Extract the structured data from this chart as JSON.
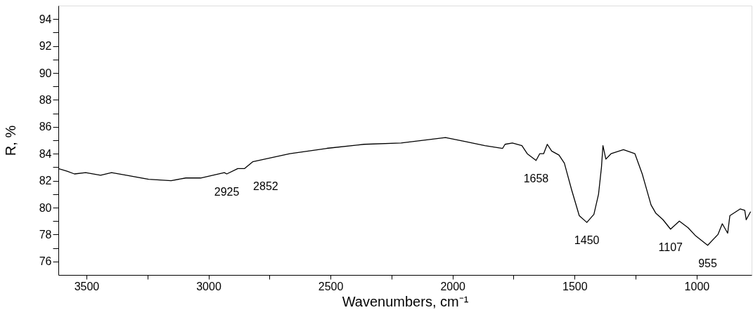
{
  "chart_data": {
    "type": "line",
    "xlabel": "Wavenumbers, cm⁻¹",
    "ylabel": "R, %",
    "xlim": [
      3615,
      775
    ],
    "ylim": [
      75,
      95
    ],
    "xticks": [
      3500,
      {
        "value": 3250,
        "label": null
      },
      3000,
      {
        "value": 2750,
        "label": null
      },
      2500,
      {
        "value": 2250,
        "label": null
      },
      2000,
      {
        "value": 1750,
        "label": null
      },
      1500,
      {
        "value": 1250,
        "label": null
      },
      1000
    ],
    "yticks": [
      76,
      {
        "value": 77,
        "label": null
      },
      78,
      {
        "value": 79,
        "label": null
      },
      80,
      {
        "value": 81,
        "label": null
      },
      82,
      {
        "value": 83,
        "label": null
      },
      84,
      {
        "value": 85,
        "label": null
      },
      86,
      {
        "value": 87,
        "label": null
      },
      88,
      {
        "value": 89,
        "label": null
      },
      90,
      {
        "value": 91,
        "label": null
      },
      92,
      {
        "value": 93,
        "label": null
      },
      94
    ],
    "grid": false,
    "marker": "none",
    "line_style": "solid",
    "series": [
      {
        "color": "#000000",
        "x": [
          3615,
          3579,
          3549,
          3503,
          3442,
          3397,
          3336,
          3245,
          3153,
          3093,
          3032,
          2935,
          2925,
          2880,
          2852,
          2819,
          2667,
          2515,
          2363,
          2211,
          2029,
          1947,
          1868,
          1795,
          1785,
          1755,
          1716,
          1694,
          1658,
          1643,
          1627,
          1612,
          1594,
          1564,
          1542,
          1512,
          1481,
          1450,
          1421,
          1402,
          1390,
          1384,
          1372,
          1351,
          1300,
          1253,
          1223,
          1187,
          1168,
          1138,
          1107,
          1071,
          1035,
          1004,
          955,
          913,
          895,
          873,
          864,
          822,
          803,
          797,
          779
        ],
        "values": [
          82.9,
          82.7,
          82.5,
          82.6,
          82.4,
          82.6,
          82.4,
          82.1,
          82.0,
          82.2,
          82.2,
          82.6,
          82.5,
          82.9,
          82.9,
          83.4,
          84.0,
          84.4,
          84.7,
          84.8,
          85.2,
          84.9,
          84.6,
          84.4,
          84.7,
          84.8,
          84.6,
          84.0,
          83.5,
          84.0,
          84.0,
          84.7,
          84.2,
          83.9,
          83.3,
          81.3,
          79.4,
          78.9,
          79.5,
          81.0,
          83.0,
          84.6,
          83.6,
          84.0,
          84.3,
          84.0,
          82.5,
          80.2,
          79.6,
          79.1,
          78.4,
          79.0,
          78.5,
          77.9,
          77.2,
          78.0,
          78.8,
          78.1,
          79.4,
          79.9,
          79.8,
          79.1,
          79.7
        ]
      }
    ],
    "annotations": [
      {
        "text": "2925",
        "x": 2925,
        "y": 82.5
      },
      {
        "text": "2852",
        "x": 2852,
        "y": 82.9
      },
      {
        "text": "1658",
        "x": 1658,
        "y": 83.5
      },
      {
        "text": "1450",
        "x": 1450,
        "y": 78.9
      },
      {
        "text": "1107",
        "x": 1107,
        "y": 78.4
      },
      {
        "text": "955",
        "x": 955,
        "y": 77.2
      }
    ]
  }
}
